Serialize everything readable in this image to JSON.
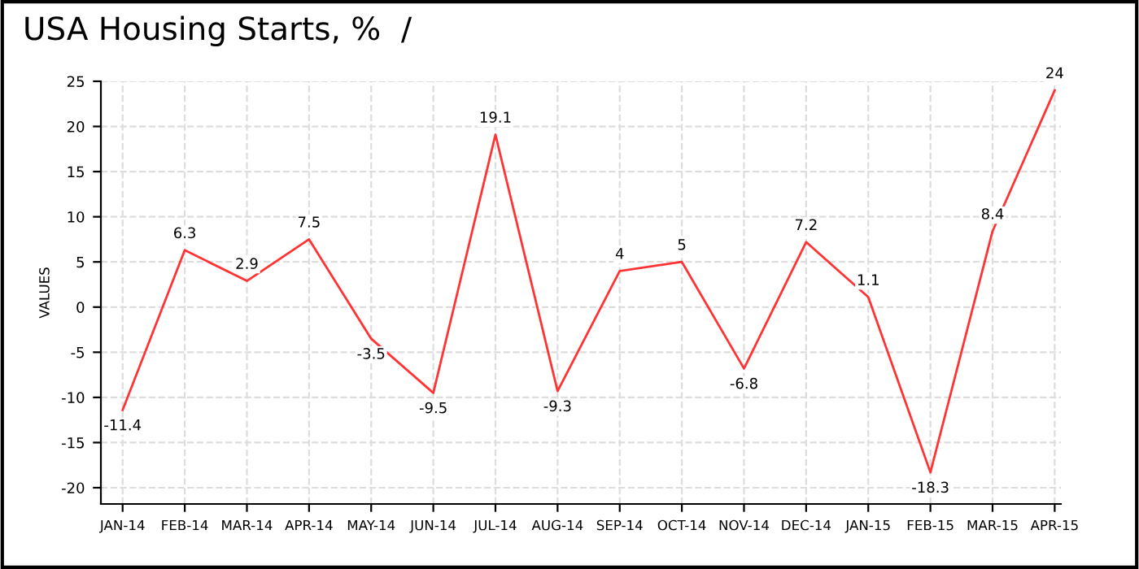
{
  "chart_data": {
    "type": "line",
    "title": "USA Housing Starts, %  /",
    "ylabel": "VALUES",
    "categories": [
      "JAN-14",
      "FEB-14",
      "MAR-14",
      "APR-14",
      "MAY-14",
      "JUN-14",
      "JUL-14",
      "AUG-14",
      "SEP-14",
      "OCT-14",
      "NOV-14",
      "DEC-14",
      "JAN-15",
      "FEB-15",
      "MAR-15",
      "APR-15"
    ],
    "series": [
      {
        "color": "#ff3333",
        "values": [
          -11.4,
          6.3,
          2.9,
          7.5,
          -3.5,
          -9.5,
          19.1,
          -9.3,
          4,
          5,
          -6.8,
          7.2,
          1.1,
          -18.3,
          8.4,
          24
        ]
      }
    ],
    "ylim": [
      -21.8,
      25
    ],
    "yticks": [
      -20,
      -15,
      -10,
      -5,
      0,
      5,
      10,
      15,
      20,
      25
    ],
    "grid": true,
    "data_labels": true,
    "marker": "none",
    "line_style": "solid"
  }
}
